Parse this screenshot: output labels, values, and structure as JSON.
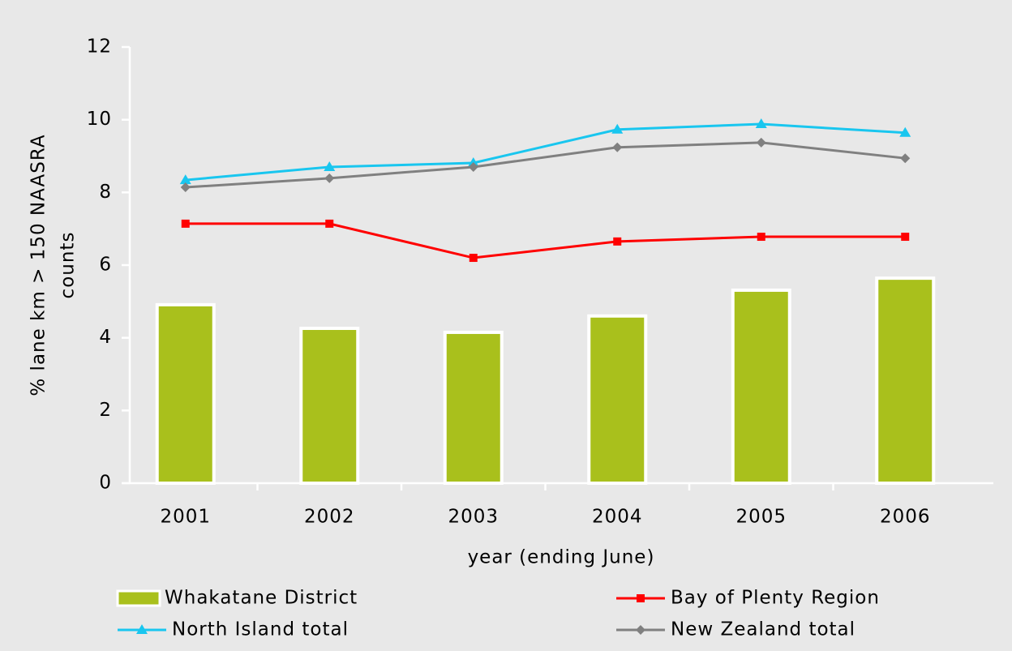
{
  "chart_data": {
    "type": "combo",
    "x_label": "year (ending June)",
    "y_label": [
      "% lane km > 150 NAASRA",
      "counts"
    ],
    "categories": [
      "2001",
      "2002",
      "2003",
      "2004",
      "2005",
      "2006"
    ],
    "series": [
      {
        "name": "Whakatane District",
        "type": "bar",
        "color": "#a9c01c",
        "values": [
          4.91,
          4.26,
          4.15,
          4.6,
          5.31,
          5.64
        ]
      },
      {
        "name": "Bay of Plenty Region",
        "type": "line",
        "marker": "square",
        "color": "#ff0000",
        "values": [
          7.14,
          7.14,
          6.2,
          6.65,
          6.78,
          6.78
        ]
      },
      {
        "name": "North Island total",
        "type": "line",
        "marker": "triangle",
        "color": "#19c6ef",
        "values": [
          8.34,
          8.7,
          8.81,
          9.73,
          9.88,
          9.64
        ]
      },
      {
        "name": "New Zealand total",
        "type": "line",
        "marker": "diamond",
        "color": "#808080",
        "values": [
          8.14,
          8.39,
          8.7,
          9.24,
          9.37,
          8.94
        ]
      }
    ],
    "ylim": [
      0,
      12
    ],
    "yticks": [
      0,
      2,
      4,
      6,
      8,
      10,
      12
    ],
    "grid": false
  }
}
